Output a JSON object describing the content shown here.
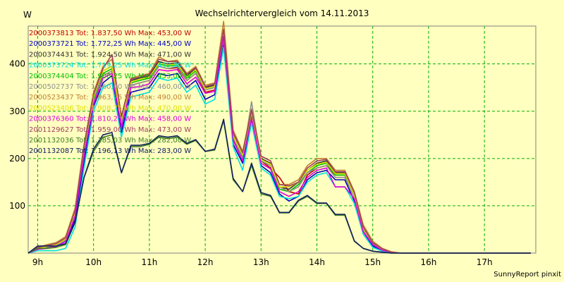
{
  "chart_data": {
    "type": "line",
    "title": "Wechselrichtervergleich vom 14.11.2013",
    "ylabel": "W",
    "xlabel": "",
    "footer": "SunnyReport pinxit",
    "ylim": [
      0,
      480
    ],
    "yticks": [
      100,
      200,
      300,
      400
    ],
    "xlim": [
      8.83,
      17.92
    ],
    "xticks": [
      {
        "value": 9,
        "label": "9h"
      },
      {
        "value": 10,
        "label": "10h"
      },
      {
        "value": 11,
        "label": "11h"
      },
      {
        "value": 12,
        "label": "12h"
      },
      {
        "value": 13,
        "label": "13h"
      },
      {
        "value": 14,
        "label": "14h"
      },
      {
        "value": 15,
        "label": "15h"
      },
      {
        "value": 16,
        "label": "16h"
      },
      {
        "value": 17,
        "label": "17h"
      }
    ],
    "grid": true,
    "legend_position": "top-left",
    "x": [
      8.83,
      9.0,
      9.17,
      9.33,
      9.5,
      9.67,
      9.83,
      10.0,
      10.17,
      10.33,
      10.5,
      10.67,
      10.83,
      11.0,
      11.17,
      11.33,
      11.5,
      11.67,
      11.83,
      12.0,
      12.17,
      12.33,
      12.5,
      12.67,
      12.83,
      13.0,
      13.17,
      13.33,
      13.5,
      13.67,
      13.83,
      14.0,
      14.17,
      14.33,
      14.5,
      14.67,
      14.83,
      15.0,
      15.17,
      15.33,
      15.5,
      15.67,
      15.83,
      16.0,
      16.17,
      16.33,
      16.5,
      16.67,
      16.83,
      17.0,
      17.17,
      17.33,
      17.5,
      17.67,
      17.83
    ],
    "series": [
      {
        "name": "2000373813",
        "legend": "2000373813 Tot: 1.837,50 Wh Max: 453,00 W",
        "color": "#c00000",
        "values": [
          0,
          10,
          12,
          15,
          25,
          80,
          210,
          320,
          375,
          385,
          270,
          355,
          360,
          365,
          395,
          390,
          392,
          365,
          380,
          340,
          345,
          450,
          240,
          200,
          290,
          195,
          180,
          160,
          130,
          125,
          165,
          180,
          185,
          165,
          165,
          120,
          50,
          20,
          8,
          2,
          0,
          0,
          0,
          0,
          0,
          0,
          0,
          0,
          0,
          0,
          0,
          0,
          0,
          0,
          0
        ]
      },
      {
        "name": "2000373721",
        "legend": "2000373721 Tot: 1.772,25 Wh Max: 445,00 W",
        "color": "#0000c0",
        "values": [
          0,
          10,
          12,
          15,
          25,
          70,
          190,
          310,
          360,
          375,
          255,
          340,
          345,
          350,
          380,
          375,
          380,
          350,
          365,
          325,
          335,
          440,
          230,
          190,
          280,
          185,
          170,
          125,
          110,
          120,
          155,
          170,
          175,
          155,
          155,
          110,
          45,
          15,
          5,
          2,
          0,
          0,
          0,
          0,
          0,
          0,
          0,
          0,
          0,
          0,
          0,
          0,
          0,
          0,
          0
        ]
      },
      {
        "name": "2000374431",
        "legend": "2000374431 Tot: 1.924,50 Wh Max: 471,00 W",
        "color": "#303030",
        "values": [
          0,
          10,
          15,
          18,
          30,
          85,
          220,
          330,
          385,
          395,
          285,
          365,
          370,
          375,
          405,
          400,
          402,
          375,
          390,
          350,
          355,
          465,
          250,
          210,
          300,
          200,
          190,
          140,
          135,
          150,
          175,
          190,
          195,
          170,
          170,
          125,
          52,
          22,
          8,
          2,
          0,
          0,
          0,
          0,
          0,
          0,
          0,
          0,
          0,
          0,
          0,
          0,
          0,
          0,
          0
        ]
      },
      {
        "name": "2000373724",
        "legend": "2000373724 Tot: 1.719,25 Wh Max: 439,00 W",
        "color": "#00e0e0",
        "values": [
          0,
          5,
          5,
          5,
          10,
          55,
          180,
          300,
          350,
          360,
          245,
          330,
          335,
          340,
          370,
          365,
          370,
          340,
          355,
          315,
          325,
          435,
          225,
          175,
          275,
          180,
          165,
          120,
          115,
          120,
          150,
          165,
          170,
          140,
          140,
          105,
          40,
          12,
          4,
          1,
          0,
          0,
          0,
          0,
          0,
          0,
          0,
          0,
          0,
          0,
          0,
          0,
          0,
          0,
          0
        ]
      },
      {
        "name": "2000374404",
        "legend": "2000374404 Tot: 1.906,25 Wh Max: 453,00 W",
        "color": "#00c000",
        "values": [
          0,
          10,
          14,
          17,
          28,
          82,
          215,
          325,
          380,
          390,
          280,
          360,
          365,
          370,
          400,
          395,
          398,
          370,
          385,
          345,
          350,
          450,
          245,
          205,
          295,
          195,
          185,
          135,
          130,
          145,
          170,
          185,
          190,
          165,
          165,
          120,
          50,
          20,
          8,
          2,
          0,
          0,
          0,
          0,
          0,
          0,
          0,
          0,
          0,
          0,
          0,
          0,
          0,
          0,
          0
        ]
      },
      {
        "name": "2000502737",
        "legend": "2000502737 Tot: 1.860,00 Wh Max: 460,00 W",
        "color": "#909090",
        "values": [
          0,
          10,
          13,
          16,
          27,
          80,
          210,
          320,
          375,
          385,
          275,
          355,
          360,
          365,
          395,
          390,
          395,
          365,
          380,
          345,
          350,
          455,
          245,
          200,
          320,
          195,
          185,
          140,
          130,
          140,
          170,
          180,
          185,
          160,
          160,
          118,
          48,
          18,
          7,
          2,
          0,
          0,
          0,
          0,
          0,
          0,
          0,
          0,
          0,
          0,
          0,
          0,
          0,
          0,
          0
        ]
      },
      {
        "name": "2000523437",
        "legend": "2000523437 Tot: 1.963,75 Wh Max: 490,00 W",
        "color": "#c08030",
        "values": [
          0,
          12,
          18,
          22,
          35,
          95,
          230,
          340,
          395,
          410,
          290,
          370,
          375,
          380,
          415,
          405,
          408,
          380,
          395,
          355,
          360,
          490,
          260,
          215,
          305,
          205,
          195,
          145,
          145,
          155,
          185,
          200,
          200,
          175,
          175,
          130,
          60,
          25,
          10,
          3,
          0,
          0,
          0,
          0,
          0,
          0,
          0,
          0,
          0,
          0,
          0,
          0,
          0,
          0,
          0
        ]
      },
      {
        "name": "2000523406",
        "legend": "2000523406 Tot: 1.908,75 Wh Max: 470,00 W",
        "color": "#e0e000",
        "values": [
          0,
          10,
          14,
          18,
          30,
          85,
          220,
          330,
          385,
          395,
          282,
          362,
          368,
          372,
          402,
          398,
          400,
          372,
          388,
          348,
          352,
          465,
          248,
          208,
          298,
          198,
          188,
          140,
          140,
          150,
          175,
          188,
          192,
          168,
          168,
          122,
          52,
          22,
          8,
          2,
          0,
          0,
          0,
          0,
          0,
          0,
          0,
          0,
          0,
          0,
          0,
          0,
          0,
          0,
          0
        ]
      },
      {
        "name": "2000376360",
        "legend": "2000376360 Tot: 1.810,25 Wh Max: 458,00 W",
        "color": "#e000e0",
        "values": [
          0,
          8,
          10,
          14,
          24,
          78,
          205,
          315,
          370,
          380,
          265,
          350,
          352,
          358,
          388,
          385,
          388,
          358,
          372,
          338,
          342,
          458,
          238,
          195,
          285,
          190,
          178,
          130,
          120,
          130,
          160,
          175,
          180,
          140,
          140,
          115,
          45,
          18,
          6,
          2,
          0,
          0,
          0,
          0,
          0,
          0,
          0,
          0,
          0,
          0,
          0,
          0,
          0,
          0,
          0
        ]
      },
      {
        "name": "2001129627",
        "legend": "2001129627 Tot: 1.959,00 Wh Max: 473,00 W",
        "color": "#a04060",
        "values": [
          0,
          12,
          16,
          20,
          32,
          90,
          225,
          335,
          390,
          420,
          288,
          368,
          372,
          378,
          410,
          405,
          405,
          378,
          392,
          352,
          358,
          473,
          255,
          212,
          302,
          205,
          195,
          145,
          142,
          150,
          180,
          195,
          198,
          172,
          172,
          128,
          55,
          22,
          9,
          2,
          0,
          0,
          0,
          0,
          0,
          0,
          0,
          0,
          0,
          0,
          0,
          0,
          0,
          0,
          0
        ]
      },
      {
        "name": "2001132036",
        "legend": "2001132036 Tot: 1.185,03 Wh Max: 282,00 W",
        "color": "#408020",
        "values": [
          0,
          10,
          10,
          12,
          18,
          65,
          160,
          215,
          245,
          250,
          170,
          225,
          225,
          230,
          245,
          242,
          245,
          230,
          238,
          215,
          218,
          280,
          155,
          130,
          185,
          125,
          120,
          85,
          85,
          110,
          120,
          105,
          105,
          80,
          80,
          25,
          10,
          4,
          2,
          0,
          0,
          0,
          0,
          0,
          0,
          0,
          0,
          0,
          0,
          0,
          0,
          0,
          0,
          0,
          0
        ]
      },
      {
        "name": "2001132087",
        "legend": "2001132087 Tot: 1.196,13 Wh Max: 283,00 W",
        "color": "#102060",
        "values": [
          0,
          15,
          15,
          15,
          20,
          65,
          160,
          220,
          250,
          255,
          170,
          228,
          228,
          232,
          248,
          245,
          248,
          232,
          240,
          215,
          220,
          283,
          158,
          130,
          190,
          128,
          122,
          86,
          86,
          112,
          122,
          106,
          106,
          82,
          82,
          26,
          10,
          4,
          2,
          0,
          0,
          0,
          0,
          0,
          0,
          0,
          0,
          0,
          0,
          0,
          0,
          0,
          0,
          0,
          0
        ]
      }
    ]
  }
}
